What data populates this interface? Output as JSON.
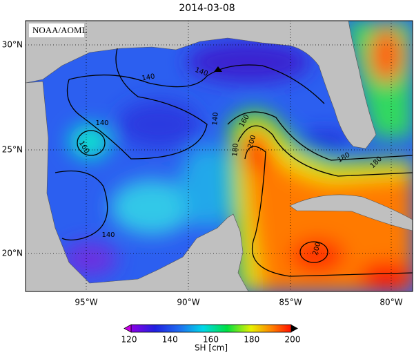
{
  "title": "2014-03-08",
  "source": "NOAA/AOML",
  "lat_labels": [
    "30°N",
    "25°N",
    "20°N"
  ],
  "lon_labels": [
    "95°W",
    "90°W",
    "85°W",
    "80°W"
  ],
  "contour_labels": [
    "140",
    "140",
    "140",
    "140",
    "160",
    "160",
    "180",
    "200",
    "180",
    "180",
    "200",
    "140"
  ],
  "colorbar": {
    "label": "SH [cm]",
    "ticks": [
      "120",
      "140",
      "160",
      "180",
      "200"
    ]
  }
}
